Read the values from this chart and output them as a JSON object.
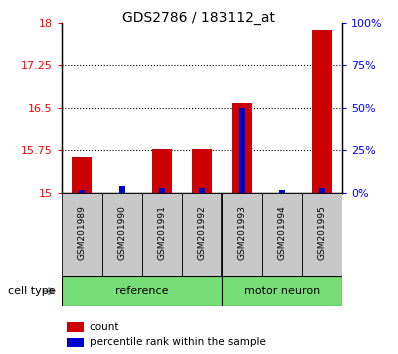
{
  "title": "GDS2786 / 183112_at",
  "samples": [
    "GSM201989",
    "GSM201990",
    "GSM201991",
    "GSM201992",
    "GSM201993",
    "GSM201994",
    "GSM201995"
  ],
  "count_values": [
    15.63,
    15.0,
    15.78,
    15.77,
    16.58,
    15.0,
    17.87
  ],
  "percentile_values": [
    2,
    4,
    3,
    3,
    50,
    2,
    3
  ],
  "ylim_left": [
    15,
    18
  ],
  "ylim_right": [
    0,
    100
  ],
  "yticks_left": [
    15,
    15.75,
    16.5,
    17.25,
    18
  ],
  "ytick_labels_left": [
    "15",
    "15.75",
    "16.5",
    "17.25",
    "18"
  ],
  "yticks_right": [
    0,
    25,
    50,
    75,
    100
  ],
  "ytick_labels_right": [
    "0%",
    "25%",
    "50%",
    "75%",
    "100%"
  ],
  "bar_width": 0.5,
  "pct_bar_width": 0.15,
  "count_color": "#cc0000",
  "percentile_color": "#0000cc",
  "plot_bg_color": "#ffffff",
  "sample_box_color": "#c8c8c8",
  "cell_type_label": "cell type",
  "legend_count": "count",
  "legend_percentile": "percentile rank within the sample",
  "reference_label": "reference",
  "motor_neuron_label": "motor neuron",
  "ref_color": "#77dd77",
  "mn_color": "#77dd77",
  "ref_count": 4,
  "mn_count": 3,
  "group_split": 3.5
}
